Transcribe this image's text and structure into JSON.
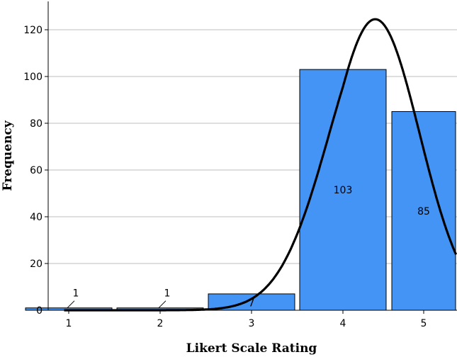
{
  "chart_data": {
    "type": "bar",
    "categories": [
      "1",
      "2",
      "3",
      "4",
      "5"
    ],
    "values": [
      1,
      1,
      7,
      103,
      85
    ],
    "data_labels": [
      "1",
      "1",
      "7",
      "103",
      "85"
    ],
    "xlabel": "Likert Scale Rating",
    "ylabel": "Frequency",
    "ylim": [
      0,
      130
    ],
    "yticks": [
      0,
      20,
      40,
      60,
      80,
      100,
      120
    ],
    "grid": true,
    "bar_color": "#4394f5",
    "bar_edge_color": "#000000",
    "normal_curve": {
      "shown": true,
      "mean": 4.4,
      "sd": 0.55,
      "peak": 124.5,
      "color": "#000000"
    }
  }
}
